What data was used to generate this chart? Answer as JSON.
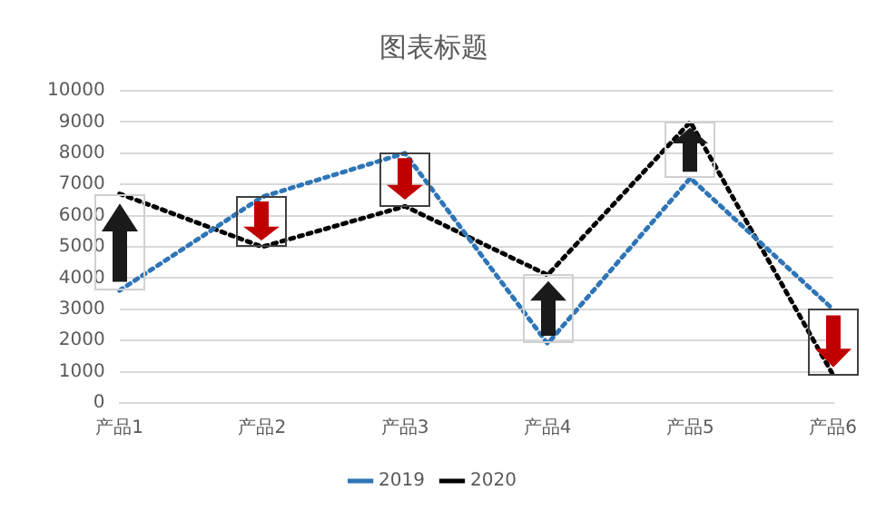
{
  "chart_data": {
    "type": "line",
    "title": "图表标题",
    "categories": [
      "产品1",
      "产品2",
      "产品3",
      "产品4",
      "产品5",
      "产品6"
    ],
    "series": [
      {
        "name": "2019",
        "color": "#2e75b6",
        "values": [
          3600,
          6600,
          8000,
          1900,
          7200,
          3000
        ]
      },
      {
        "name": "2020",
        "color": "#000000",
        "values": [
          6700,
          5000,
          6300,
          4100,
          9000,
          900
        ]
      }
    ],
    "ylim": [
      0,
      10000
    ],
    "yticks": [
      0,
      1000,
      2000,
      3000,
      4000,
      5000,
      6000,
      7000,
      8000,
      9000,
      10000
    ],
    "grid": "y",
    "legend": "bottom",
    "line_style": "dotted",
    "marker": "none"
  }
}
